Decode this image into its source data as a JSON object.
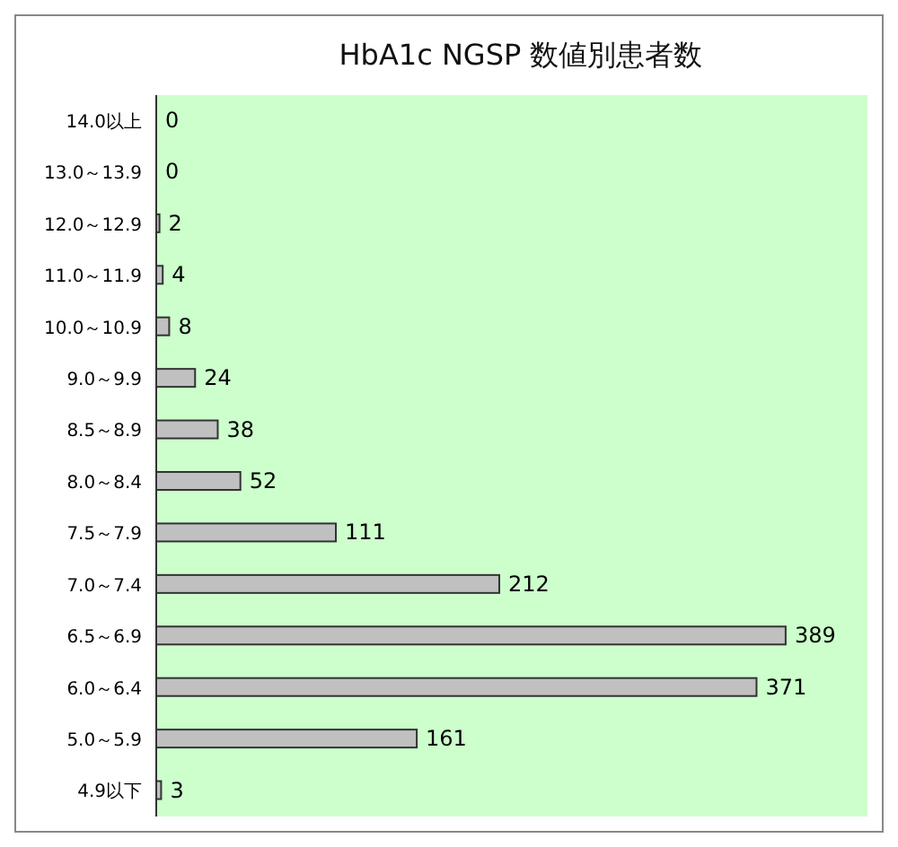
{
  "chart_data": {
    "type": "bar",
    "orientation": "horizontal",
    "title": "HbA1c NGSP 数値別患者数",
    "categories": [
      "14.0以上",
      "13.0～13.9",
      "12.0～12.9",
      "11.0～11.9",
      "10.0～10.9",
      "9.0～9.9",
      "8.5～8.9",
      "8.0～8.4",
      "7.5～7.9",
      "7.0～7.4",
      "6.5～6.9",
      "6.0～6.4",
      "5.0～5.9",
      "4.9以下"
    ],
    "values": [
      0,
      0,
      2,
      4,
      8,
      24,
      38,
      52,
      111,
      212,
      389,
      371,
      161,
      3
    ],
    "color": "#c0c0c0",
    "data_labels": true,
    "grid": false
  }
}
